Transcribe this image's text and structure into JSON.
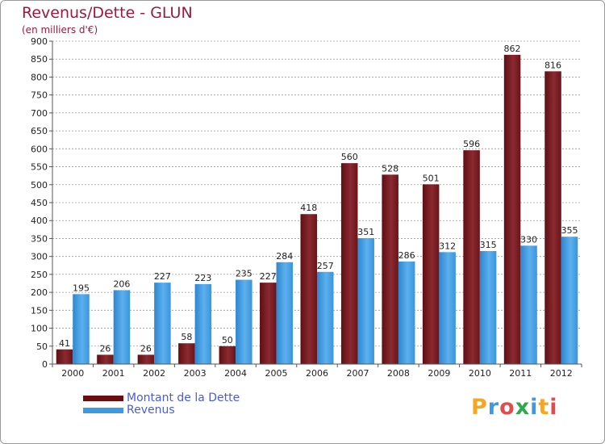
{
  "header": {
    "title": "Revenus/Dette - GLUN",
    "subtitle": "(en milliers d'€)"
  },
  "colors": {
    "debt": "#7a1a1f",
    "revenue": "#3d9ae0",
    "grid": "#9a9a9a",
    "title": "#a0193a",
    "legend_text": "#4a5cd6"
  },
  "chart_data": {
    "type": "bar",
    "title": "Revenus/Dette - GLUN",
    "subtitle": "(en milliers d'€)",
    "xlabel": "",
    "ylabel": "",
    "ylim": [
      0,
      900
    ],
    "yticks": [
      0,
      50,
      100,
      150,
      200,
      250,
      300,
      350,
      400,
      450,
      500,
      550,
      600,
      650,
      700,
      750,
      800,
      850,
      900
    ],
    "grid": true,
    "legend_position": "bottom-left",
    "categories": [
      "2000",
      "2001",
      "2002",
      "2003",
      "2004",
      "2005",
      "2006",
      "2007",
      "2008",
      "2009",
      "2010",
      "2011",
      "2012"
    ],
    "series": [
      {
        "name": "Montant de la Dette",
        "values": [
          41,
          26,
          26,
          58,
          50,
          227,
          418,
          560,
          528,
          501,
          596,
          862,
          816
        ]
      },
      {
        "name": "Revenus",
        "values": [
          195,
          206,
          227,
          223,
          235,
          284,
          257,
          351,
          286,
          312,
          315,
          330,
          355
        ]
      }
    ]
  },
  "legend": {
    "items": [
      {
        "label": "Montant de la Dette"
      },
      {
        "label": "Revenus"
      }
    ]
  },
  "logo": {
    "letters": [
      "P",
      "r",
      "o",
      "x",
      "i",
      "t",
      "i"
    ],
    "colors": [
      "#f5a623",
      "#3d9ae0",
      "#e24c4c",
      "#2fa84f",
      "#3d9ae0",
      "#f5a623",
      "#e24c4c"
    ]
  }
}
